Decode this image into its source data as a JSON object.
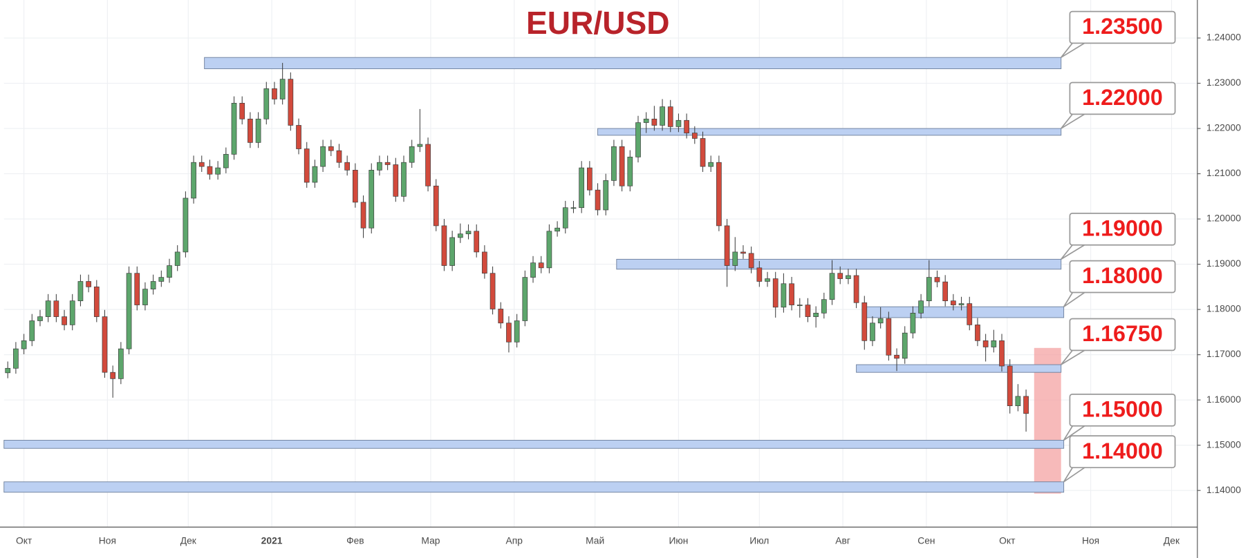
{
  "chart_data": {
    "type": "candlestick",
    "title": "EUR/USD",
    "title_color": "#b8232a",
    "up_color": "#5da66c",
    "down_color": "#d24a3c",
    "edge_color": "#3c3c3c",
    "grid": true,
    "xlim": [
      -7.4,
      435.6
    ],
    "ylim": [
      1.1319,
      1.2484
    ],
    "xticks": [
      {
        "value": 0,
        "label": "Окт"
      },
      {
        "value": 31,
        "label": "Ноя"
      },
      {
        "value": 61,
        "label": "Дек"
      },
      {
        "value": 92,
        "label": "2021"
      },
      {
        "value": 123,
        "label": "Фев"
      },
      {
        "value": 151,
        "label": "Мар"
      },
      {
        "value": 182,
        "label": "Апр"
      },
      {
        "value": 212,
        "label": "Май"
      },
      {
        "value": 243,
        "label": "Июн"
      },
      {
        "value": 273,
        "label": "Июл"
      },
      {
        "value": 304,
        "label": "Авг"
      },
      {
        "value": 335,
        "label": "Сен"
      },
      {
        "value": 365,
        "label": "Окт"
      },
      {
        "value": 396,
        "label": "Ноя"
      },
      {
        "value": 426,
        "label": "Дек"
      }
    ],
    "yticks": [
      {
        "value": 1.14,
        "label": "1.14000"
      },
      {
        "value": 1.15,
        "label": "1.15000"
      },
      {
        "value": 1.16,
        "label": "1.16000"
      },
      {
        "value": 1.17,
        "label": "1.17000"
      },
      {
        "value": 1.18,
        "label": "1.18000"
      },
      {
        "value": 1.19,
        "label": "1.19000"
      },
      {
        "value": 1.2,
        "label": "1.20000"
      },
      {
        "value": 1.21,
        "label": "1.21000"
      },
      {
        "value": 1.22,
        "label": "1.22000"
      },
      {
        "value": 1.23,
        "label": "1.23000"
      },
      {
        "value": 1.24,
        "label": "1.24000"
      }
    ],
    "x": [
      -6,
      -3,
      0,
      3,
      6,
      9,
      12,
      15,
      18,
      21,
      24,
      27,
      30,
      33,
      36,
      39,
      42,
      45,
      48,
      51,
      54,
      57,
      60,
      63,
      66,
      69,
      72,
      75,
      78,
      81,
      84,
      87,
      90,
      93,
      96,
      99,
      102,
      105,
      108,
      111,
      114,
      117,
      120,
      123,
      126,
      129,
      132,
      135,
      138,
      141,
      144,
      147,
      150,
      153,
      156,
      159,
      162,
      165,
      168,
      171,
      174,
      177,
      180,
      183,
      186,
      189,
      192,
      195,
      198,
      201,
      204,
      207,
      210,
      213,
      216,
      219,
      222,
      225,
      228,
      231,
      234,
      237,
      240,
      243,
      246,
      249,
      252,
      255,
      258,
      261,
      264,
      267,
      270,
      273,
      276,
      279,
      282,
      285,
      288,
      291,
      294,
      297,
      300,
      303,
      306,
      309,
      312,
      315,
      318,
      321,
      324,
      327,
      330,
      333,
      336,
      339,
      342,
      345,
      348,
      351,
      354,
      357,
      360,
      363,
      366,
      369,
      372
    ],
    "open": [
      1.166,
      1.167,
      1.1713,
      1.1731,
      1.1775,
      1.1784,
      1.1819,
      1.1784,
      1.1766,
      1.1819,
      1.1862,
      1.185,
      1.1784,
      1.1661,
      1.1647,
      1.1713,
      1.188,
      1.181,
      1.1845,
      1.1862,
      1.1871,
      1.1897,
      1.1927,
      1.2046,
      1.2125,
      1.2116,
      1.2099,
      1.2113,
      1.2143,
      1.2256,
      1.2221,
      1.2169,
      1.2221,
      1.2288,
      1.2265,
      1.2309,
      1.2207,
      1.2155,
      1.2081,
      1.2116,
      1.216,
      1.2151,
      1.2125,
      1.2108,
      1.2037,
      1.198,
      1.2108,
      1.2125,
      1.212,
      1.205,
      1.2125,
      1.216,
      1.2165,
      1.2073,
      1.1985,
      1.1897,
      1.1959,
      1.1967,
      1.1973,
      1.1927,
      1.188,
      1.1801,
      1.177,
      1.1728,
      1.1775,
      1.1871,
      1.1903,
      1.1892,
      1.1973,
      1.198,
      1.2025,
      1.2025,
      1.2113,
      1.2064,
      1.202,
      1.2085,
      1.216,
      1.2073,
      1.2137,
      1.2213,
      1.2221,
      1.2207,
      1.2248,
      1.2204,
      1.2218,
      1.219,
      1.2178,
      1.2116,
      1.2125,
      1.1985,
      1.1897,
      1.1927,
      1.1924,
      1.1892,
      1.1862,
      1.1868,
      1.1805,
      1.1857,
      1.181,
      1.181,
      1.1784,
      1.1792,
      1.1822,
      1.188,
      1.1868,
      1.1875,
      1.1815,
      1.1731,
      1.177,
      1.178,
      1.1699,
      1.1692,
      1.1748,
      1.1792,
      1.1819,
      1.1871,
      1.1861,
      1.1819,
      1.181,
      1.1813,
      1.1766,
      1.1731,
      1.1717,
      1.1731,
      1.1675,
      1.1587,
      1.1608
    ],
    "high": [
      1.1685,
      1.1728,
      1.1746,
      1.179,
      1.1799,
      1.1834,
      1.1834,
      1.1799,
      1.1834,
      1.1877,
      1.1877,
      1.1865,
      1.1799,
      1.1676,
      1.1728,
      1.1895,
      1.1895,
      1.186,
      1.1877,
      1.1886,
      1.1912,
      1.1942,
      1.2061,
      1.214,
      1.214,
      1.2131,
      1.2128,
      1.2158,
      1.2271,
      1.2271,
      1.2236,
      1.2236,
      1.2303,
      1.2303,
      1.2345,
      1.2324,
      1.2222,
      1.217,
      1.2131,
      1.2175,
      1.2175,
      1.2166,
      1.214,
      1.2123,
      1.2052,
      1.2123,
      1.214,
      1.214,
      1.2135,
      1.214,
      1.2175,
      1.2243,
      1.218,
      1.2088,
      1.2,
      1.1974,
      1.199,
      1.1988,
      1.1988,
      1.1942,
      1.1895,
      1.1816,
      1.1785,
      1.179,
      1.1886,
      1.1918,
      1.1918,
      1.1988,
      1.1995,
      1.204,
      1.204,
      1.2128,
      1.2128,
      1.2079,
      1.21,
      1.2175,
      1.2175,
      1.2152,
      1.2228,
      1.2236,
      1.225,
      1.2265,
      1.2263,
      1.2233,
      1.2233,
      1.2205,
      1.2193,
      1.214,
      1.214,
      1.2,
      1.196,
      1.1942,
      1.1939,
      1.1907,
      1.1883,
      1.1883,
      1.188,
      1.1872,
      1.1825,
      1.1825,
      1.1807,
      1.1837,
      1.1909,
      1.1895,
      1.189,
      1.189,
      1.183,
      1.1785,
      1.1805,
      1.1795,
      1.1714,
      1.1763,
      1.1807,
      1.1834,
      1.1909,
      1.1886,
      1.1876,
      1.1834,
      1.1828,
      1.1828,
      1.1781,
      1.1746,
      1.1755,
      1.1746,
      1.169,
      1.1635,
      1.1623
    ],
    "low": [
      1.1648,
      1.1658,
      1.1701,
      1.1719,
      1.1763,
      1.1772,
      1.1772,
      1.1754,
      1.1754,
      1.1807,
      1.1838,
      1.1772,
      1.1649,
      1.1605,
      1.1635,
      1.1701,
      1.1798,
      1.1798,
      1.1833,
      1.185,
      1.1859,
      1.1885,
      1.1915,
      1.2034,
      1.2104,
      1.2087,
      1.2087,
      1.2101,
      1.2131,
      1.2209,
      1.2157,
      1.2157,
      1.2209,
      1.2253,
      1.2253,
      1.2195,
      1.2143,
      1.2069,
      1.2069,
      1.2104,
      1.2139,
      1.2113,
      1.2096,
      1.2025,
      1.1958,
      1.1968,
      1.2096,
      1.2108,
      1.2038,
      1.2038,
      1.2113,
      1.2148,
      1.2061,
      1.1973,
      1.1885,
      1.1885,
      1.1947,
      1.1955,
      1.1915,
      1.1868,
      1.1789,
      1.1758,
      1.1705,
      1.1716,
      1.1763,
      1.1859,
      1.188,
      1.188,
      1.1961,
      1.1968,
      1.2013,
      1.2013,
      1.2052,
      1.2008,
      1.2008,
      1.2073,
      1.2061,
      1.2061,
      1.2125,
      1.219,
      1.2195,
      1.2195,
      1.2192,
      1.2192,
      1.2178,
      1.2166,
      1.2104,
      1.2104,
      1.1973,
      1.185,
      1.1885,
      1.1912,
      1.188,
      1.185,
      1.185,
      1.1782,
      1.1793,
      1.1798,
      1.1782,
      1.1772,
      1.176,
      1.178,
      1.181,
      1.1856,
      1.1856,
      1.1803,
      1.1711,
      1.1719,
      1.1758,
      1.1687,
      1.1664,
      1.168,
      1.1736,
      1.178,
      1.1807,
      1.1849,
      1.1807,
      1.1798,
      1.1798,
      1.1754,
      1.1719,
      1.1685,
      1.1705,
      1.1663,
      1.157,
      1.1575,
      1.153
    ],
    "close": [
      1.167,
      1.1713,
      1.1731,
      1.1775,
      1.1784,
      1.1819,
      1.1784,
      1.1766,
      1.1819,
      1.1862,
      1.185,
      1.1784,
      1.1661,
      1.1647,
      1.1713,
      1.188,
      1.181,
      1.1845,
      1.1862,
      1.1871,
      1.1897,
      1.1927,
      1.2046,
      1.2125,
      1.2116,
      1.2099,
      1.2113,
      1.2143,
      1.2256,
      1.2221,
      1.2169,
      1.2221,
      1.2288,
      1.2265,
      1.2309,
      1.2207,
      1.2155,
      1.2081,
      1.2116,
      1.216,
      1.2151,
      1.2125,
      1.2108,
      1.2037,
      1.198,
      1.2108,
      1.2125,
      1.212,
      1.205,
      1.2125,
      1.216,
      1.2165,
      1.2073,
      1.1985,
      1.1897,
      1.1959,
      1.1967,
      1.1973,
      1.1927,
      1.188,
      1.1801,
      1.177,
      1.1728,
      1.1775,
      1.1871,
      1.1903,
      1.1892,
      1.1973,
      1.198,
      1.2025,
      1.2025,
      1.2113,
      1.2064,
      1.202,
      1.2085,
      1.216,
      1.2073,
      1.2137,
      1.2213,
      1.2221,
      1.2207,
      1.2248,
      1.2204,
      1.2218,
      1.219,
      1.2178,
      1.2116,
      1.2125,
      1.1985,
      1.1897,
      1.1927,
      1.1924,
      1.1892,
      1.1862,
      1.1868,
      1.1805,
      1.1857,
      1.181,
      1.181,
      1.1784,
      1.1792,
      1.1822,
      1.188,
      1.1868,
      1.1875,
      1.1815,
      1.1731,
      1.177,
      1.178,
      1.1699,
      1.1692,
      1.1748,
      1.1792,
      1.1819,
      1.1871,
      1.1861,
      1.1819,
      1.181,
      1.1813,
      1.1766,
      1.1731,
      1.1717,
      1.1731,
      1.1675,
      1.1587,
      1.1608,
      1.157
    ],
    "zone_color": "#bcd0f2",
    "levels": [
      {
        "label": "1.23500",
        "value": 1.235,
        "range": [
          1.2332,
          1.2357
        ],
        "x": [
          67,
          385
        ]
      },
      {
        "label": "1.22000",
        "value": 1.22,
        "range": [
          1.2185,
          1.22
        ],
        "x": [
          213,
          385
        ]
      },
      {
        "label": "1.19000",
        "value": 1.19,
        "range": [
          1.1889,
          1.1911
        ],
        "x": [
          220,
          385
        ]
      },
      {
        "label": "1.18000",
        "value": 1.18,
        "range": [
          1.1782,
          1.1806
        ],
        "x": [
          312,
          386
        ]
      },
      {
        "label": "1.16750",
        "value": 1.1675,
        "range": [
          1.1661,
          1.1678
        ],
        "x": [
          309,
          385
        ]
      },
      {
        "label": "1.15000",
        "value": 1.15,
        "range": [
          1.1493,
          1.1511
        ],
        "x": [
          -7.4,
          386
        ]
      },
      {
        "label": "1.14000",
        "value": 1.14,
        "range": [
          1.1396,
          1.1419
        ],
        "x": [
          -7.4,
          386
        ]
      }
    ],
    "highlight": {
      "x": [
        375,
        385
      ],
      "y": [
        1.1393,
        1.1715
      ],
      "color": "#f4a3a3"
    }
  }
}
